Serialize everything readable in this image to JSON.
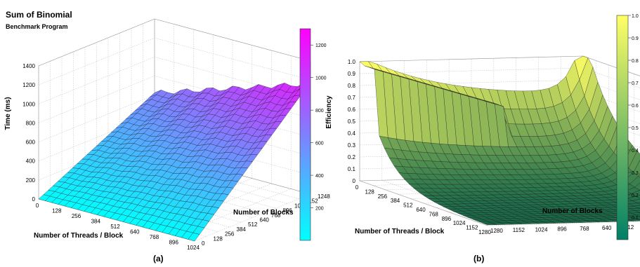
{
  "captions": {
    "a": "(a)",
    "b": "(b)"
  },
  "chart_data": [
    {
      "type": "surface",
      "title": "Sum of Binomial",
      "subtitle": "Benchmark Program",
      "xlabel": "Number of Threads / Block",
      "ylabel": "Number of Blocks",
      "zlabel": "Time (ms)",
      "x_ticks": [
        "0",
        "128",
        "256",
        "384",
        "512",
        "640",
        "768",
        "896",
        "1024"
      ],
      "y_ticks": [
        "0",
        "128",
        "256",
        "384",
        "512",
        "640",
        "768",
        "896",
        "1024",
        "1152",
        "1248"
      ],
      "z_ticks": [
        "0",
        "200",
        "400",
        "600",
        "800",
        "1000",
        "1200",
        "1400"
      ],
      "xlim": [
        0,
        1024
      ],
      "ylim": [
        0,
        1248
      ],
      "zlim": [
        0,
        1400
      ],
      "colormap": "cool",
      "colorbar": {
        "ticks": [
          "200",
          "400",
          "600",
          "800",
          "1000",
          "1200"
        ],
        "range": [
          0,
          1300
        ]
      },
      "grid": true,
      "samples": [
        {
          "threads": 1024,
          "blocks": 1248,
          "time": 1300
        },
        {
          "threads": 0,
          "blocks": 1248,
          "time": 780
        },
        {
          "threads": 1024,
          "blocks": 0,
          "time": 20
        },
        {
          "threads": 0,
          "blocks": 0,
          "time": 0
        }
      ]
    },
    {
      "type": "surface",
      "xlabel": "Number of Threads / Block",
      "ylabel": "Number of Blocks",
      "zlabel": "Efficiency",
      "x_ticks": [
        "0",
        "128",
        "256",
        "384",
        "512",
        "640",
        "768",
        "896",
        "1024",
        "1152",
        "1280"
      ],
      "y_ticks": [
        "0",
        "128",
        "256",
        "384",
        "512",
        "640",
        "768",
        "896",
        "1024",
        "1152",
        "1280"
      ],
      "z_ticks": [
        "0",
        "0.1",
        "0.2",
        "0.3",
        "0.4",
        "0.5",
        "0.6",
        "0.7",
        "0.8",
        "0.9",
        "1.0"
      ],
      "xlim": [
        0,
        1280
      ],
      "ylim": [
        0,
        1280
      ],
      "zlim": [
        0,
        1.0
      ],
      "colormap": "summer",
      "colorbar": {
        "ticks": [
          "0.1",
          "0.2",
          "0.3",
          "0.4",
          "0.5",
          "0.6",
          "0.7",
          "0.8",
          "0.9",
          "1.0"
        ],
        "range": [
          0,
          1.0
        ]
      },
      "grid": true,
      "samples": [
        {
          "threads": 0,
          "blocks": 0,
          "efficiency": 1.0
        },
        {
          "threads": 0,
          "blocks": 1280,
          "efficiency": 0.55
        },
        {
          "threads": 1280,
          "blocks": 0,
          "efficiency": 0.15
        },
        {
          "threads": 1280,
          "blocks": 1280,
          "efficiency": 0.0
        }
      ]
    }
  ]
}
